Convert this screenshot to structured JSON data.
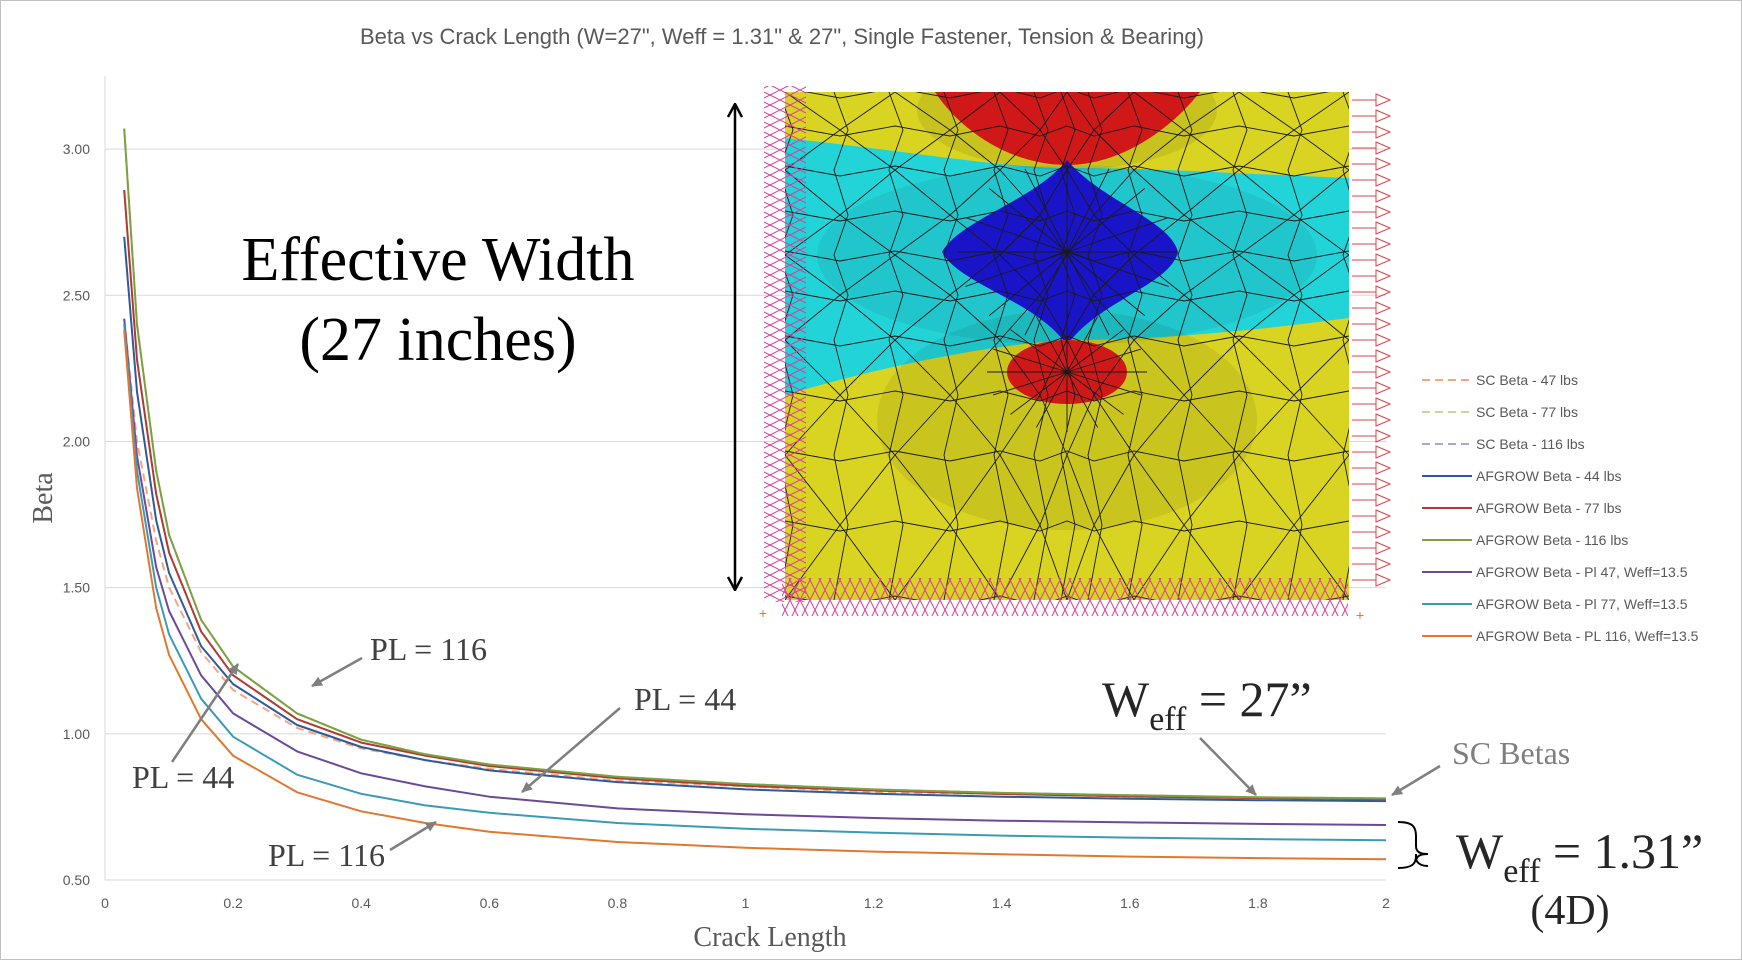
{
  "chart_data": {
    "type": "line",
    "title": "Beta vs Crack Length (W=27\", Weff = 1.31\" & 27\", Single Fastener, Tension & Bearing)",
    "xlabel": "Crack Length",
    "ylabel": "Beta",
    "xlim": [
      0,
      2
    ],
    "ylim": [
      0.5,
      3.25
    ],
    "x_ticks": [
      "0",
      "0.2",
      "0.4",
      "0.6",
      "0.8",
      "1",
      "1.2",
      "1.4",
      "1.6",
      "1.8",
      "2"
    ],
    "y_ticks": [
      "0.50",
      "1.00",
      "1.50",
      "2.00",
      "2.50",
      "3.00"
    ],
    "grid": "horizontal",
    "legend_position": "right",
    "x": [
      0.03,
      0.05,
      0.08,
      0.1,
      0.15,
      0.2,
      0.3,
      0.4,
      0.5,
      0.6,
      0.8,
      1.0,
      1.2,
      1.4,
      1.6,
      1.8,
      2.0
    ],
    "series": [
      {
        "name": "SC Beta - 47 lbs",
        "color": "#F4A582",
        "dash": true,
        "values": [
          2.42,
          2.0,
          1.66,
          1.5,
          1.28,
          1.15,
          1.02,
          0.95,
          0.91,
          0.88,
          0.84,
          0.82,
          0.8,
          0.795,
          0.785,
          0.78,
          0.775
        ]
      },
      {
        "name": "SC Beta - 77 lbs",
        "color": "#C8D89A",
        "dash": true,
        "values": [
          2.86,
          2.28,
          1.82,
          1.62,
          1.35,
          1.2,
          1.05,
          0.97,
          0.925,
          0.89,
          0.85,
          0.825,
          0.808,
          0.797,
          0.788,
          0.782,
          0.778
        ]
      },
      {
        "name": "SC Beta - 116 lbs",
        "color": "#A8A8D8",
        "dash": true,
        "values": [
          3.07,
          2.4,
          1.9,
          1.68,
          1.39,
          1.23,
          1.07,
          0.98,
          0.93,
          0.895,
          0.853,
          0.828,
          0.81,
          0.798,
          0.79,
          0.783,
          0.779
        ]
      },
      {
        "name": "AFGROW Beta - 44 lbs",
        "color": "#2E5A9A",
        "dash": false,
        "values": [
          2.7,
          2.17,
          1.73,
          1.55,
          1.3,
          1.17,
          1.03,
          0.955,
          0.91,
          0.875,
          0.835,
          0.81,
          0.795,
          0.785,
          0.778,
          0.773,
          0.77
        ]
      },
      {
        "name": "AFGROW Beta - 77 lbs",
        "color": "#B23A36",
        "dash": false,
        "values": [
          2.86,
          2.28,
          1.82,
          1.62,
          1.35,
          1.2,
          1.05,
          0.97,
          0.925,
          0.89,
          0.848,
          0.822,
          0.806,
          0.794,
          0.786,
          0.78,
          0.776
        ]
      },
      {
        "name": "AFGROW Beta - 116 lbs",
        "color": "#7BA23F",
        "dash": false,
        "values": [
          3.07,
          2.4,
          1.9,
          1.68,
          1.39,
          1.23,
          1.07,
          0.98,
          0.93,
          0.895,
          0.853,
          0.828,
          0.81,
          0.798,
          0.79,
          0.783,
          0.779
        ]
      },
      {
        "name": "AFGROW Beta - Pl 47, Weff=13.5",
        "color": "#6B4A9A",
        "dash": false,
        "values": [
          2.42,
          1.95,
          1.57,
          1.42,
          1.2,
          1.07,
          0.94,
          0.865,
          0.82,
          0.785,
          0.745,
          0.725,
          0.712,
          0.703,
          0.697,
          0.692,
          0.688
        ]
      },
      {
        "name": "AFGROW Beta - Pl 77, Weff=13.5",
        "color": "#3A9AB8",
        "dash": false,
        "values": [
          2.4,
          1.9,
          1.5,
          1.34,
          1.12,
          0.99,
          0.86,
          0.795,
          0.755,
          0.73,
          0.695,
          0.675,
          0.662,
          0.652,
          0.645,
          0.64,
          0.636
        ]
      },
      {
        "name": "AFGROW Beta - PL 116, Weff=13.5",
        "color": "#E07830",
        "dash": false,
        "values": [
          2.38,
          1.84,
          1.43,
          1.27,
          1.05,
          0.925,
          0.8,
          0.735,
          0.695,
          0.665,
          0.63,
          0.61,
          0.597,
          0.588,
          0.58,
          0.575,
          0.571
        ]
      }
    ],
    "annotations": {
      "effective_width": [
        "Effective Width",
        "(27 inches)"
      ],
      "pl_116_upper": "PL = 116",
      "pl_44_left": "PL = 44",
      "pl_44_mid": "PL = 44",
      "pl_116_lower": "PL = 116",
      "weff_27_base": "W",
      "weff_27_sub": "eff",
      "weff_27_tail": " = 27”",
      "sc_betas": "SC Betas",
      "weff_131_base": "W",
      "weff_131_sub": "eff",
      "weff_131_tail": " = 1.31”",
      "weff_131_note": "(4D)"
    }
  },
  "colors": {
    "frame": "#bfbfbf",
    "grid": "#d9d9d9",
    "axis_text": "#595959",
    "annotation_arrow": "#7f7f7f",
    "fem_yellow": "#D9D321",
    "fem_cyan": "#22D3D8",
    "fem_blue": "#1A14C8",
    "fem_red": "#D01818",
    "fem_constraint": "#D93C9B",
    "fem_load": "#E04040"
  }
}
